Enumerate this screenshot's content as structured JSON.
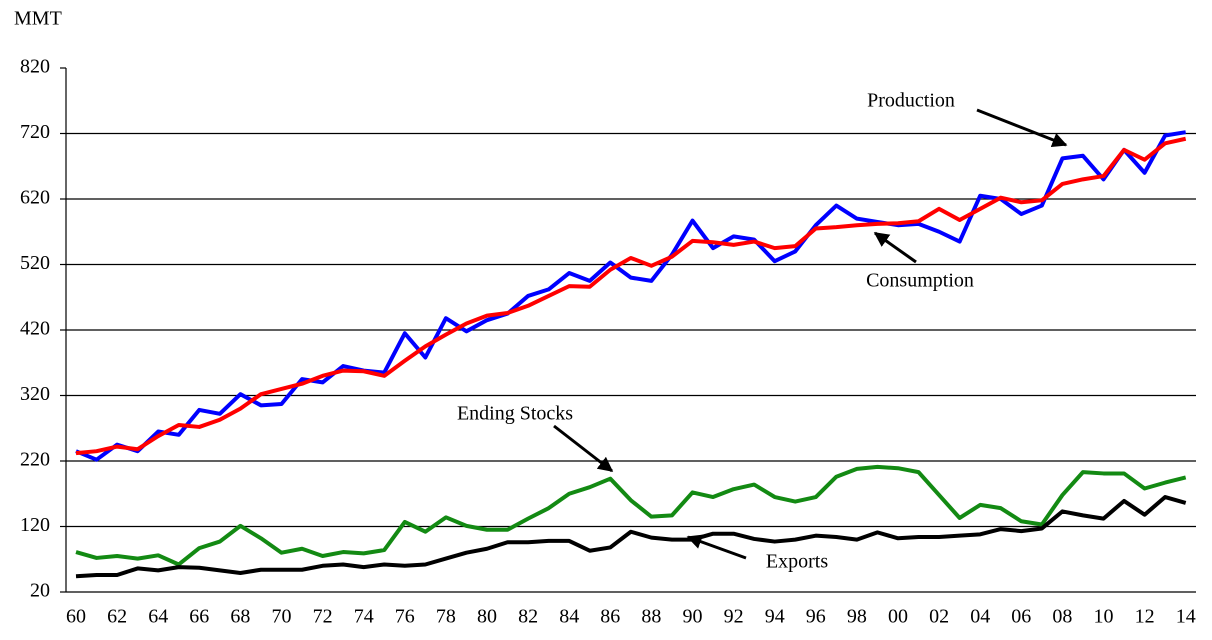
{
  "chart_data": {
    "type": "line",
    "y_label": "MMT",
    "categories": [
      "60",
      null,
      "62",
      null,
      "64",
      null,
      "66",
      null,
      "68",
      null,
      "70",
      null,
      "72",
      null,
      "74",
      null,
      "76",
      null,
      "78",
      null,
      "80",
      null,
      "82",
      null,
      "84",
      null,
      "86",
      null,
      "88",
      null,
      "90",
      null,
      "92",
      null,
      "94",
      null,
      "96",
      null,
      "98",
      null,
      "00",
      null,
      "02",
      null,
      "04",
      null,
      "06",
      null,
      "08",
      null,
      "10",
      null,
      "12",
      null,
      "14"
    ],
    "series": [
      {
        "name": "Production",
        "color": "#0000ff",
        "values": [
          235,
          222,
          245,
          235,
          265,
          260,
          298,
          292,
          322,
          305,
          307,
          345,
          340,
          365,
          358,
          355,
          415,
          378,
          438,
          418,
          435,
          445,
          472,
          482,
          507,
          495,
          523,
          500,
          495,
          535,
          587,
          545,
          563,
          558,
          525,
          540,
          580,
          610,
          590,
          585,
          580,
          582,
          570,
          555,
          625,
          620,
          597,
          610,
          682,
          686,
          650,
          695,
          660,
          717,
          722
        ]
      },
      {
        "name": "Consumption",
        "color": "#ff0000",
        "values": [
          232,
          235,
          242,
          238,
          258,
          275,
          272,
          283,
          300,
          322,
          330,
          338,
          350,
          358,
          357,
          350,
          373,
          395,
          413,
          430,
          442,
          446,
          457,
          472,
          487,
          486,
          512,
          530,
          518,
          532,
          556,
          554,
          550,
          555,
          545,
          548,
          575,
          577,
          580,
          582,
          583,
          586,
          605,
          588,
          605,
          622,
          615,
          618,
          643,
          650,
          655,
          695,
          680,
          705,
          712
        ]
      },
      {
        "name": "Ending Stocks",
        "color": "#138a13",
        "values": [
          81,
          72,
          75,
          71,
          76,
          62,
          87,
          97,
          121,
          102,
          80,
          86,
          75,
          81,
          79,
          84,
          127,
          112,
          134,
          121,
          115,
          115,
          132,
          148,
          170,
          180,
          193,
          160,
          135,
          137,
          172,
          165,
          177,
          184,
          165,
          158,
          165,
          196,
          208,
          211,
          209,
          203,
          168,
          133,
          153,
          148,
          128,
          123,
          168,
          203,
          201,
          201,
          178,
          187,
          195
        ]
      },
      {
        "name": "Exports",
        "color": "#000000",
        "values": [
          44,
          46,
          46,
          56,
          53,
          58,
          57,
          53,
          49,
          54,
          54,
          54,
          60,
          62,
          58,
          62,
          60,
          62,
          71,
          80,
          86,
          96,
          96,
          98,
          98,
          83,
          88,
          112,
          103,
          100,
          100,
          109,
          109,
          101,
          97,
          100,
          106,
          104,
          100,
          111,
          102,
          104,
          104,
          106,
          108,
          116,
          113,
          117,
          143,
          137,
          132,
          159,
          138,
          165,
          156
        ]
      }
    ],
    "ylim": [
      20,
      820
    ],
    "yticks": [
      20,
      120,
      220,
      320,
      420,
      520,
      620,
      720,
      820
    ],
    "grid": true
  }
}
